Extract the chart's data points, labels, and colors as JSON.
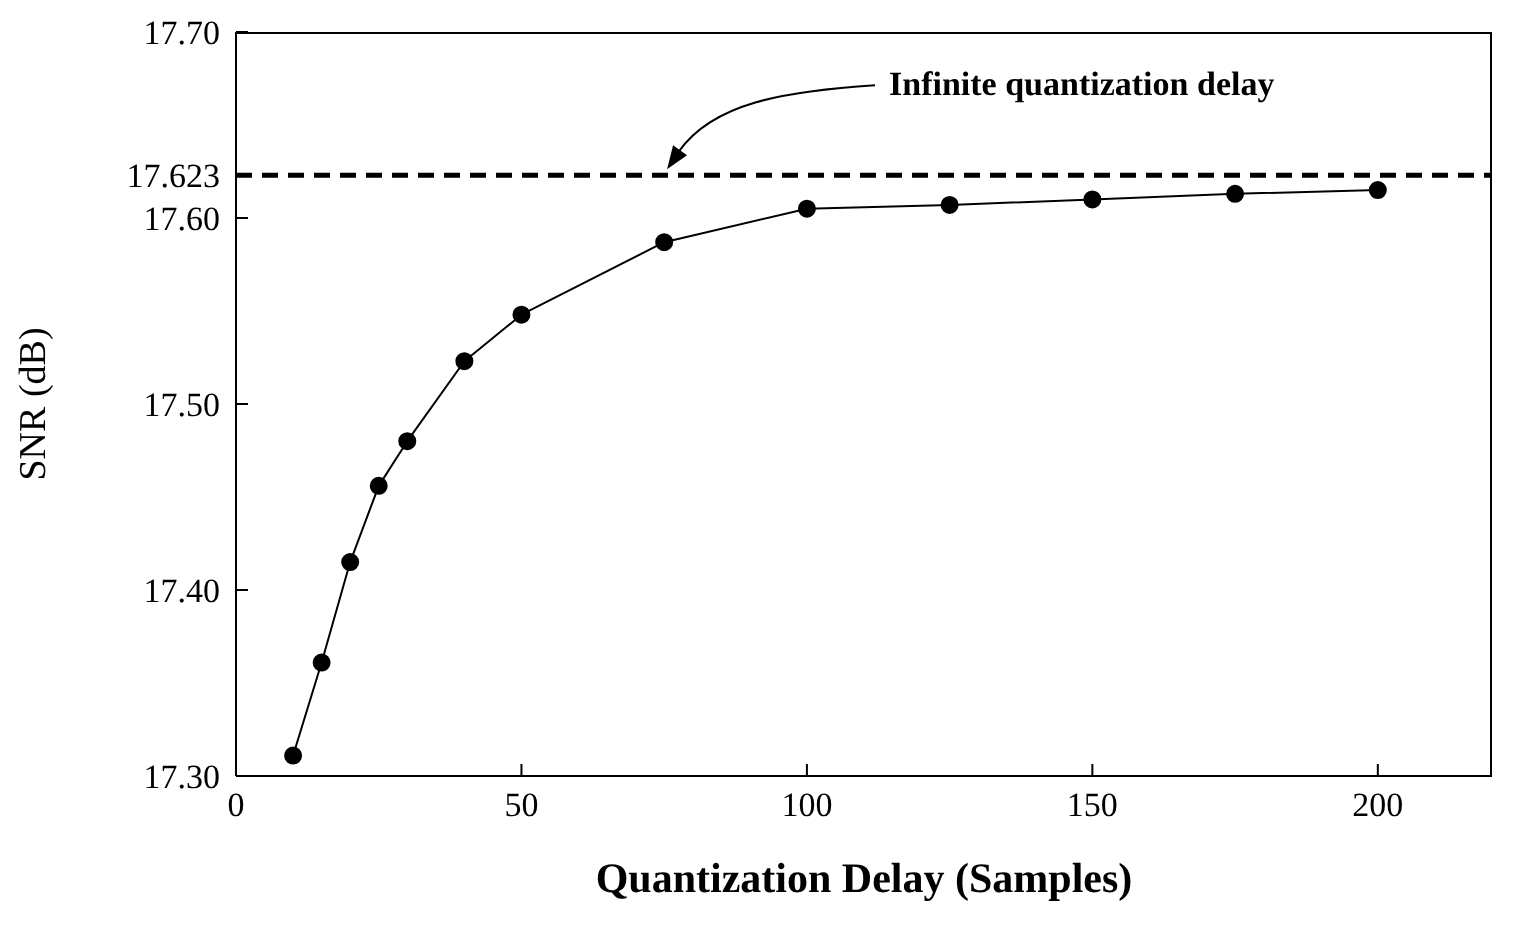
{
  "chart_data": {
    "type": "line",
    "xlabel": "Quantization Delay (Samples)",
    "ylabel": "SNR (dB)",
    "x": [
      10,
      15,
      20,
      25,
      30,
      40,
      50,
      75,
      100,
      125,
      150,
      175,
      200
    ],
    "series": [
      {
        "color": "#000000",
        "values": [
          17.311,
          17.361,
          17.415,
          17.456,
          17.48,
          17.523,
          17.548,
          17.587,
          17.605,
          17.607,
          17.61,
          17.613,
          17.615
        ]
      }
    ],
    "xlim": [
      0,
      220
    ],
    "xticks": [
      0,
      50,
      100,
      150,
      200
    ],
    "ylim": [
      17.3,
      17.7
    ],
    "yticks": [
      {
        "value": 17.3,
        "label": "17.30"
      },
      {
        "value": 17.4,
        "label": "17.40"
      },
      {
        "value": 17.5,
        "label": "17.50"
      },
      {
        "value": 17.6,
        "label": "17.60"
      },
      17.623,
      {
        "value": 17.7,
        "label": "17.70"
      }
    ],
    "ref_lines": [
      {
        "axis": "y",
        "value": 17.623,
        "color": "#000000",
        "line_style": "dashed"
      }
    ],
    "annotations": [
      "Infinite quantization delay"
    ],
    "marker": "circle",
    "line_style": "solid"
  }
}
